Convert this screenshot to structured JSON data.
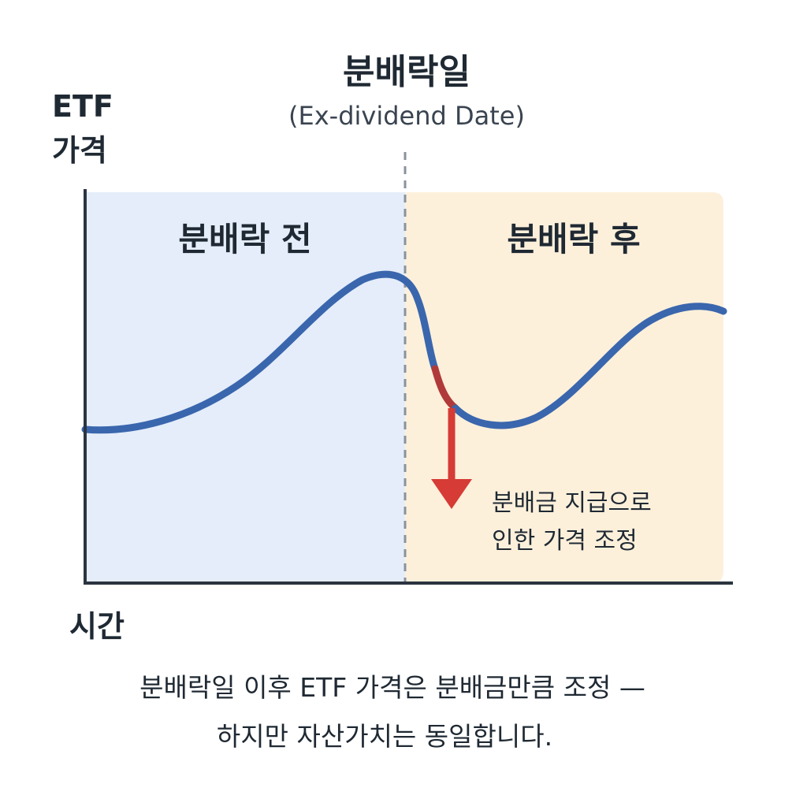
{
  "title": {
    "main": "분배락일",
    "sub": "(Ex-dividend Date)"
  },
  "axes": {
    "y_label_line1": "ETF",
    "y_label_line2": "가격",
    "x_label": "시간"
  },
  "regions": {
    "before": {
      "label": "분배락 전",
      "color": "#e4edf9"
    },
    "after": {
      "label": "분배락 후",
      "color": "#fdf0db"
    }
  },
  "annotation": {
    "line1": "분배금 지급으로",
    "line2": "인한 가격 조정"
  },
  "caption": {
    "line1": "분배락일 이후 ETF 가격은 분배금만큼 조정 —",
    "line2": "하지만 자산가치는 동일합니다."
  },
  "colors": {
    "price_line": "#3a66ad",
    "drop_segment": "#b03a3a",
    "arrow": "#d63b35",
    "axis": "#2b3440",
    "divider": "#8a929c",
    "text": "#1f2933"
  }
}
